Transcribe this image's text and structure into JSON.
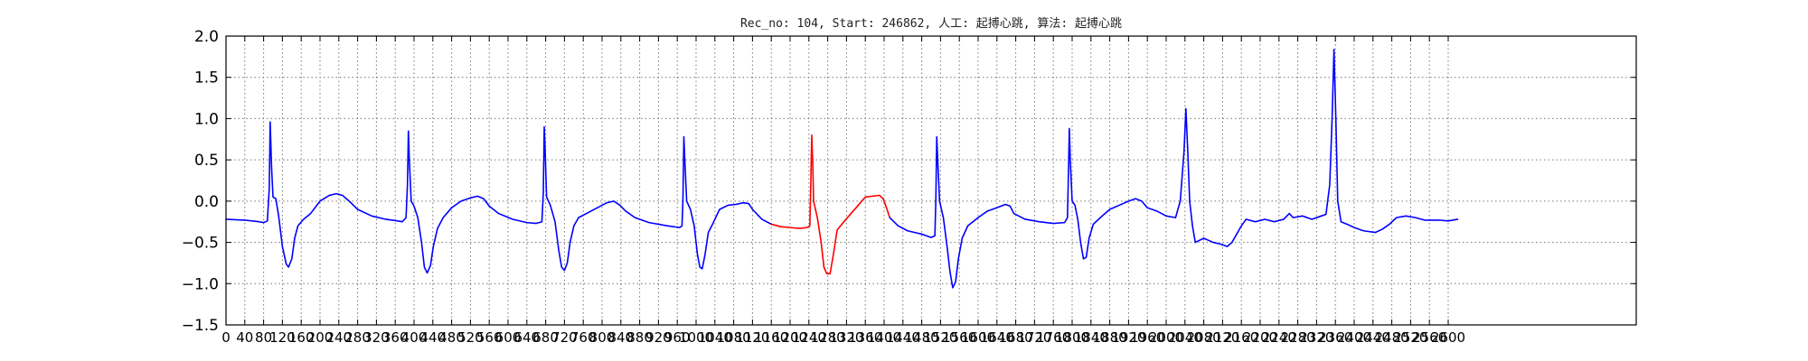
{
  "chart_data": {
    "type": "line",
    "title": "Rec_no: 104, Start: 246862, 人工: 起搏心跳, 算法: 起搏心跳",
    "xlabel": "",
    "ylabel": "",
    "xlim": [
      0,
      3000
    ],
    "ylim": [
      -1.5,
      2.0
    ],
    "grid": true,
    "x_ticks": [
      0,
      40,
      80,
      120,
      160,
      200,
      240,
      280,
      320,
      360,
      400,
      440,
      480,
      520,
      560,
      600,
      640,
      680,
      720,
      760,
      800,
      840,
      880,
      920,
      960,
      1000,
      1040,
      1080,
      1120,
      1160,
      1200,
      1240,
      1280,
      1320,
      1360,
      1400,
      1440,
      1480,
      1520,
      1560,
      1600,
      1640,
      1680,
      1720,
      1760,
      1800,
      1840,
      1880,
      1920,
      1960,
      2000,
      2040,
      2080,
      2120,
      2160,
      2200,
      2240,
      2280,
      2320,
      2360,
      2400,
      2440,
      2480,
      2520,
      2560,
      2600
    ],
    "y_ticks": [
      -1.5,
      -1.0,
      -0.5,
      0.0,
      0.5,
      1.0,
      1.5,
      2.0
    ],
    "y_tick_labels": [
      "−1.5",
      "−1.0",
      "−0.5",
      "0.0",
      "0.5",
      "1.0",
      "1.5",
      "2.0"
    ],
    "colors": {
      "normal": "#0000ff",
      "highlight": "#ff0000",
      "grid": "#777777"
    },
    "series": [
      {
        "color": "#0000ff",
        "points": [
          [
            0,
            -0.22
          ],
          [
            40,
            -0.23
          ],
          [
            70,
            -0.25
          ],
          [
            80,
            -0.26
          ],
          [
            88,
            -0.24
          ],
          [
            92,
            0.15
          ],
          [
            94,
            0.96
          ],
          [
            97,
            0.4
          ],
          [
            100,
            0.05
          ],
          [
            106,
            0.03
          ],
          [
            112,
            -0.18
          ],
          [
            120,
            -0.55
          ],
          [
            128,
            -0.76
          ],
          [
            133,
            -0.8
          ],
          [
            140,
            -0.7
          ],
          [
            146,
            -0.45
          ],
          [
            153,
            -0.3
          ],
          [
            165,
            -0.22
          ],
          [
            180,
            -0.15
          ],
          [
            200,
            0.0
          ],
          [
            220,
            0.07
          ],
          [
            235,
            0.09
          ],
          [
            248,
            0.07
          ],
          [
            262,
            0.0
          ],
          [
            280,
            -0.1
          ],
          [
            310,
            -0.18
          ],
          [
            340,
            -0.22
          ],
          [
            365,
            -0.24
          ],
          [
            375,
            -0.25
          ],
          [
            383,
            -0.2
          ],
          [
            386,
            0.2
          ],
          [
            388,
            0.85
          ],
          [
            390,
            0.5
          ],
          [
            394,
            0.0
          ],
          [
            400,
            -0.06
          ],
          [
            408,
            -0.2
          ],
          [
            416,
            -0.5
          ],
          [
            422,
            -0.8
          ],
          [
            428,
            -0.87
          ],
          [
            435,
            -0.78
          ],
          [
            441,
            -0.55
          ],
          [
            450,
            -0.33
          ],
          [
            462,
            -0.2
          ],
          [
            480,
            -0.08
          ],
          [
            500,
            0.0
          ],
          [
            520,
            0.04
          ],
          [
            535,
            0.06
          ],
          [
            548,
            0.03
          ],
          [
            560,
            -0.06
          ],
          [
            580,
            -0.15
          ],
          [
            610,
            -0.22
          ],
          [
            640,
            -0.26
          ],
          [
            660,
            -0.27
          ],
          [
            672,
            -0.25
          ],
          [
            675,
            0.1
          ],
          [
            677,
            0.9
          ],
          [
            679,
            0.6
          ],
          [
            682,
            0.05
          ],
          [
            690,
            -0.05
          ],
          [
            700,
            -0.25
          ],
          [
            708,
            -0.6
          ],
          [
            714,
            -0.8
          ],
          [
            720,
            -0.84
          ],
          [
            726,
            -0.75
          ],
          [
            732,
            -0.5
          ],
          [
            740,
            -0.3
          ],
          [
            750,
            -0.2
          ],
          [
            770,
            -0.14
          ],
          [
            790,
            -0.08
          ],
          [
            810,
            -0.02
          ],
          [
            825,
            0.0
          ],
          [
            838,
            -0.05
          ],
          [
            850,
            -0.12
          ],
          [
            870,
            -0.2
          ],
          [
            900,
            -0.26
          ],
          [
            940,
            -0.3
          ],
          [
            965,
            -0.32
          ],
          [
            970,
            -0.3
          ],
          [
            972,
            0.0
          ],
          [
            974,
            0.78
          ],
          [
            976,
            0.5
          ],
          [
            980,
            0.0
          ],
          [
            988,
            -0.1
          ],
          [
            996,
            -0.3
          ],
          [
            1003,
            -0.65
          ],
          [
            1008,
            -0.8
          ],
          [
            1013,
            -0.82
          ],
          [
            1019,
            -0.65
          ],
          [
            1026,
            -0.38
          ],
          [
            1035,
            -0.28
          ],
          [
            1050,
            -0.1
          ],
          [
            1068,
            -0.05
          ],
          [
            1085,
            -0.04
          ],
          [
            1100,
            -0.02
          ],
          [
            1112,
            -0.03
          ],
          [
            1120,
            -0.1
          ],
          [
            1140,
            -0.22
          ],
          [
            1160,
            -0.28
          ]
        ]
      },
      {
        "color": "#ff0000",
        "points": [
          [
            1160,
            -0.28
          ],
          [
            1180,
            -0.31
          ],
          [
            1200,
            -0.32
          ],
          [
            1220,
            -0.33
          ],
          [
            1236,
            -0.32
          ],
          [
            1242,
            -0.3
          ],
          [
            1244,
            0.2
          ],
          [
            1246,
            0.8
          ],
          [
            1248,
            0.5
          ],
          [
            1250,
            0.0
          ],
          [
            1258,
            -0.2
          ],
          [
            1266,
            -0.5
          ],
          [
            1272,
            -0.8
          ],
          [
            1278,
            -0.88
          ],
          [
            1285,
            -0.88
          ],
          [
            1292,
            -0.65
          ],
          [
            1300,
            -0.35
          ],
          [
            1310,
            -0.28
          ],
          [
            1325,
            -0.18
          ],
          [
            1345,
            -0.05
          ],
          [
            1360,
            0.05
          ],
          [
            1375,
            0.06
          ],
          [
            1390,
            0.07
          ],
          [
            1398,
            0.03
          ],
          [
            1405,
            -0.08
          ],
          [
            1412,
            -0.2
          ]
        ]
      },
      {
        "color": "#0000ff",
        "points": [
          [
            1412,
            -0.2
          ],
          [
            1430,
            -0.3
          ],
          [
            1450,
            -0.36
          ],
          [
            1480,
            -0.4
          ],
          [
            1500,
            -0.44
          ],
          [
            1508,
            -0.42
          ],
          [
            1510,
            0.0
          ],
          [
            1512,
            0.78
          ],
          [
            1514,
            0.5
          ],
          [
            1518,
            0.0
          ],
          [
            1526,
            -0.2
          ],
          [
            1534,
            -0.55
          ],
          [
            1540,
            -0.85
          ],
          [
            1546,
            -1.05
          ],
          [
            1552,
            -0.98
          ],
          [
            1558,
            -0.7
          ],
          [
            1566,
            -0.45
          ],
          [
            1578,
            -0.3
          ],
          [
            1600,
            -0.2
          ],
          [
            1620,
            -0.12
          ],
          [
            1640,
            -0.08
          ],
          [
            1658,
            -0.04
          ],
          [
            1668,
            -0.06
          ],
          [
            1676,
            -0.15
          ],
          [
            1700,
            -0.22
          ],
          [
            1730,
            -0.25
          ],
          [
            1760,
            -0.27
          ],
          [
            1784,
            -0.26
          ],
          [
            1790,
            -0.2
          ],
          [
            1792,
            0.3
          ],
          [
            1794,
            0.88
          ],
          [
            1796,
            0.5
          ],
          [
            1800,
            0.0
          ],
          [
            1806,
            -0.05
          ],
          [
            1812,
            -0.22
          ],
          [
            1818,
            -0.5
          ],
          [
            1824,
            -0.7
          ],
          [
            1830,
            -0.68
          ],
          [
            1836,
            -0.45
          ],
          [
            1845,
            -0.28
          ],
          [
            1860,
            -0.2
          ],
          [
            1880,
            -0.1
          ],
          [
            1900,
            -0.05
          ],
          [
            1920,
            0.0
          ],
          [
            1935,
            0.03
          ],
          [
            1948,
            0.0
          ],
          [
            1960,
            -0.08
          ],
          [
            1980,
            -0.12
          ],
          [
            2000,
            -0.18
          ],
          [
            2020,
            -0.2
          ],
          [
            2030,
            0.0
          ],
          [
            2038,
            0.6
          ],
          [
            2042,
            1.12
          ],
          [
            2046,
            0.6
          ],
          [
            2050,
            0.0
          ],
          [
            2056,
            -0.3
          ],
          [
            2062,
            -0.5
          ],
          [
            2080,
            -0.45
          ],
          [
            2100,
            -0.5
          ],
          [
            2115,
            -0.52
          ],
          [
            2130,
            -0.55
          ],
          [
            2140,
            -0.5
          ],
          [
            2150,
            -0.4
          ],
          [
            2160,
            -0.3
          ],
          [
            2170,
            -0.22
          ],
          [
            2190,
            -0.25
          ],
          [
            2210,
            -0.22
          ],
          [
            2230,
            -0.25
          ],
          [
            2250,
            -0.22
          ],
          [
            2262,
            -0.15
          ],
          [
            2270,
            -0.2
          ],
          [
            2290,
            -0.18
          ],
          [
            2310,
            -0.22
          ],
          [
            2330,
            -0.18
          ],
          [
            2340,
            -0.16
          ],
          [
            2348,
            0.2
          ],
          [
            2353,
            1.0
          ],
          [
            2357,
            1.84
          ],
          [
            2361,
            1.0
          ],
          [
            2365,
            0.0
          ],
          [
            2372,
            -0.25
          ],
          [
            2385,
            -0.28
          ],
          [
            2400,
            -0.32
          ],
          [
            2420,
            -0.36
          ],
          [
            2445,
            -0.38
          ],
          [
            2460,
            -0.34
          ],
          [
            2475,
            -0.28
          ],
          [
            2490,
            -0.2
          ],
          [
            2510,
            -0.18
          ],
          [
            2530,
            -0.2
          ],
          [
            2550,
            -0.23
          ],
          [
            2580,
            -0.23
          ],
          [
            2600,
            -0.24
          ],
          [
            2620,
            -0.22
          ]
        ]
      }
    ]
  }
}
